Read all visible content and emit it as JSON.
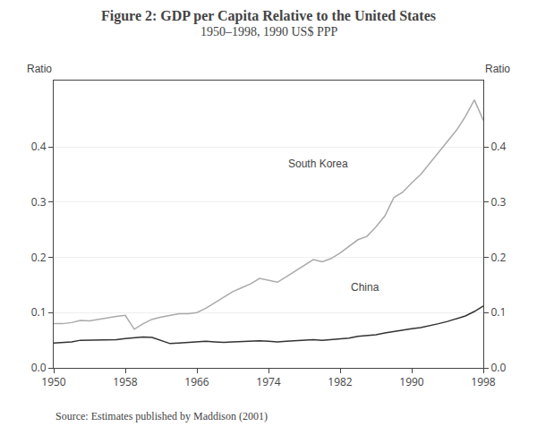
{
  "chart_data": {
    "type": "line",
    "title": "Figure 2: GDP per Capita Relative to the United States",
    "subtitle": "1950–1998, 1990 US$ PPP",
    "ylabel": "Ratio",
    "y2label": "Ratio",
    "source": "Source: Estimates published by Maddison (2001)",
    "x": [
      1950,
      1951,
      1952,
      1953,
      1954,
      1955,
      1956,
      1957,
      1958,
      1959,
      1960,
      1961,
      1962,
      1963,
      1964,
      1965,
      1966,
      1967,
      1968,
      1969,
      1970,
      1971,
      1972,
      1973,
      1974,
      1975,
      1976,
      1977,
      1978,
      1979,
      1980,
      1981,
      1982,
      1983,
      1984,
      1985,
      1986,
      1987,
      1988,
      1989,
      1990,
      1991,
      1992,
      1993,
      1994,
      1995,
      1996,
      1997,
      1998
    ],
    "series": [
      {
        "color": "#aaaaaa",
        "values": [
          0.08,
          0.08,
          0.082,
          0.086,
          0.085,
          0.088,
          0.09,
          0.093,
          0.095,
          0.07,
          0.08,
          0.088,
          0.092,
          0.095,
          0.098,
          0.098,
          0.1,
          0.108,
          0.118,
          0.128,
          0.138,
          0.145,
          0.152,
          0.162,
          0.158,
          0.155,
          0.165,
          0.175,
          0.185,
          0.196,
          0.192,
          0.198,
          0.208,
          0.22,
          0.232,
          0.238,
          0.255,
          0.275,
          0.308,
          0.318,
          0.335,
          0.35,
          0.37,
          0.39,
          0.41,
          0.43,
          0.455,
          0.485,
          0.448
        ]
      },
      {
        "color": "#333333",
        "values": [
          0.045,
          0.046,
          0.047,
          0.05,
          0.05,
          0.05,
          0.05,
          0.051,
          0.053,
          0.055,
          0.056,
          0.055,
          0.049,
          0.044,
          0.045,
          0.046,
          0.047,
          0.048,
          0.047,
          0.046,
          0.047,
          0.048,
          0.049,
          0.049,
          0.048,
          0.047,
          0.048,
          0.049,
          0.05,
          0.051,
          0.05,
          0.051,
          0.052,
          0.054,
          0.057,
          0.058,
          0.06,
          0.063,
          0.066,
          0.068,
          0.071,
          0.073,
          0.076,
          0.08,
          0.084,
          0.089,
          0.094,
          0.102,
          0.112
        ]
      }
    ],
    "annotations": [
      {
        "text": "South Korea",
        "x": 1976,
        "y": 0.355
      },
      {
        "text": "China",
        "x": 1983,
        "y": 0.132
      }
    ],
    "xlim": [
      1950,
      1998
    ],
    "xticks": [
      1950,
      1958,
      1966,
      1974,
      1982,
      1990,
      1998
    ],
    "ylim": [
      0.0,
      0.52
    ],
    "yticks": [
      {
        "value": 0.0,
        "label": "0.0"
      },
      0.1,
      0.2,
      0.3,
      0.4
    ],
    "y2lim": [
      0.0,
      0.52
    ],
    "y2ticks": [
      {
        "value": 0.0,
        "label": "0.0"
      },
      0.1,
      0.2,
      0.3,
      0.4
    ],
    "grid": true
  }
}
